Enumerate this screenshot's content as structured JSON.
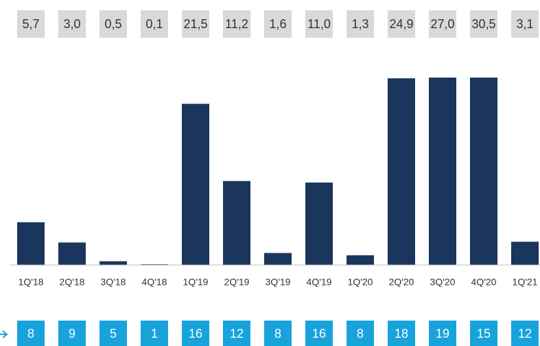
{
  "chart_data": {
    "type": "bar",
    "categories": [
      "1Q'18",
      "2Q'18",
      "3Q'18",
      "4Q'18",
      "1Q'19",
      "2Q'19",
      "3Q'19",
      "4Q'19",
      "1Q'20",
      "2Q'20",
      "3Q'20",
      "4Q'20",
      "1Q'21"
    ],
    "values": [
      5.7,
      3.0,
      0.5,
      0.1,
      21.5,
      11.2,
      1.6,
      11.0,
      1.3,
      24.9,
      27.0,
      30.5,
      3.1
    ],
    "value_labels": [
      "5,7",
      "3,0",
      "0,5",
      "0,1",
      "21,5",
      "11,2",
      "1,6",
      "11,0",
      "1,3",
      "24,9",
      "27,0",
      "30,5",
      "3,1"
    ],
    "counts": [
      8,
      9,
      5,
      1,
      16,
      12,
      8,
      16,
      8,
      18,
      19,
      15,
      12
    ],
    "color": "#1b365d",
    "label_box_color": "#d9d9d9",
    "count_box_color": "#18a3dc",
    "ylim": [
      0,
      25
    ]
  }
}
